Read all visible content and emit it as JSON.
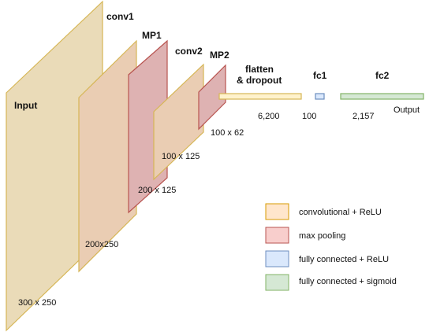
{
  "layers": {
    "input": {
      "label": "Input",
      "dims": "300 x 250"
    },
    "conv1": {
      "label": "conv1",
      "dims": "200x250"
    },
    "mp1": {
      "label": "MP1",
      "dims": "200 x 125"
    },
    "conv2": {
      "label": "conv2",
      "dims": "100 x 125"
    },
    "mp2": {
      "label": "MP2",
      "dims": "100 x 62"
    },
    "flatten": {
      "label_line1": "flatten",
      "label_line2": "& dropout",
      "dims": "6,200"
    },
    "fc1": {
      "label": "fc1",
      "dims": "100"
    },
    "fc2": {
      "label": "fc2",
      "dims": "2,157",
      "output_label": "Output"
    }
  },
  "legend": [
    {
      "label": "convolutional + ReLU",
      "fill": "#ffe6cc",
      "stroke": "#d79b00"
    },
    {
      "label": "max pooling",
      "fill": "#f8cecc",
      "stroke": "#b85450"
    },
    {
      "label": "fully connected + ReLU",
      "fill": "#dae8fc",
      "stroke": "#6c8ebf"
    },
    {
      "label": "fully connected + sigmoid",
      "fill": "#d5e8d4",
      "stroke": "#82b366"
    }
  ],
  "colors": {
    "input_fill": "#eadbb8",
    "input_stroke": "#d6b656",
    "conv_fill": "#eacdb3",
    "conv_stroke": "#d6b656",
    "pool_fill": "#deb2b2",
    "pool_stroke": "#b85450",
    "flatten_fill": "#fff2cc",
    "flatten_stroke": "#d6b656",
    "fc_relu_fill": "#dae8fc",
    "fc_relu_stroke": "#6c8ebf",
    "fc_sig_fill": "#d5e8d4",
    "fc_sig_stroke": "#82b366"
  }
}
